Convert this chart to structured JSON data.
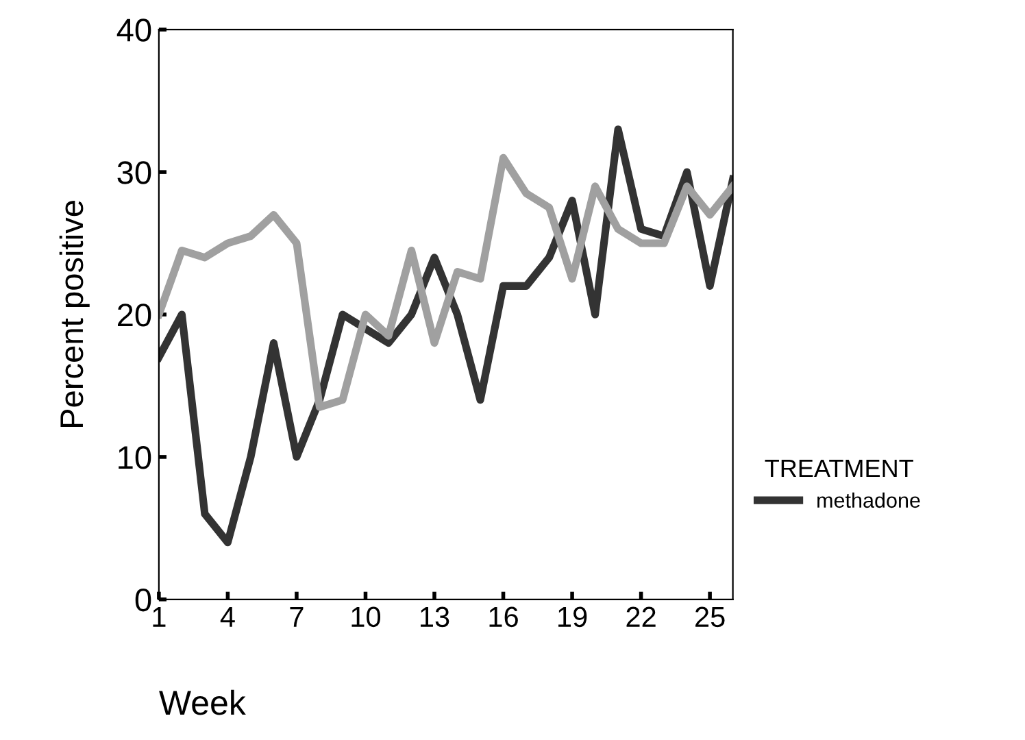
{
  "chart_data": {
    "type": "line",
    "xlabel": "Week",
    "ylabel": "Percent positive",
    "legend_title": "TREATMENT",
    "x": [
      1,
      2,
      3,
      4,
      5,
      6,
      7,
      8,
      9,
      10,
      11,
      12,
      13,
      14,
      15,
      16,
      17,
      18,
      19,
      20,
      21,
      22,
      23,
      24,
      25,
      26
    ],
    "series": [
      {
        "name": "methadone",
        "color": "#333333",
        "values": [
          17,
          20,
          6,
          4,
          10,
          18,
          10,
          14,
          20,
          19,
          18,
          20,
          24,
          20,
          14,
          22,
          22,
          24,
          28,
          20,
          33,
          26,
          25.5,
          30,
          22,
          29.5
        ]
      },
      {
        "color": "#a0a0a0",
        "values": [
          20,
          24.5,
          24,
          25,
          25.5,
          27,
          25,
          13.5,
          14,
          20,
          18.5,
          24.5,
          18,
          23,
          22.5,
          31,
          28.5,
          27.5,
          22.5,
          29,
          26,
          25,
          25,
          29,
          27,
          29
        ]
      }
    ],
    "xlim": [
      1,
      26
    ],
    "xticks": [
      1,
      4,
      7,
      10,
      13,
      16,
      19,
      22,
      25
    ],
    "ylim": [
      0,
      40
    ],
    "yticks": [
      0,
      10,
      20,
      30,
      40
    ],
    "grid": false,
    "legend": "right",
    "marker": "none",
    "line_style": "solid"
  }
}
